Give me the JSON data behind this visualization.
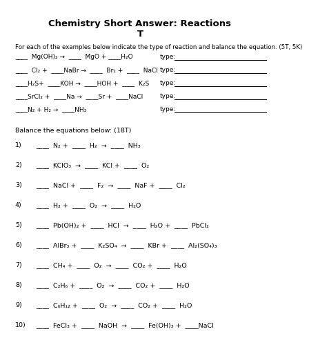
{
  "title_line1": "Chemistry Short Answer: Reactions",
  "title_line2": "T",
  "bg_color": "#ffffff",
  "text_color": "#000000",
  "intro": "For each of the examples below indicate the type of reaction and balance the equation. (5T, 5K)",
  "type_reactions": [
    "____  Mg(OH)₂ →  ____  MgO + ____H₂O",
    "____  Cl₂ +  ____NaBr →  ____  Br₂ +  ____  NaCl",
    "____H₂S+  ____KOH →  ____HOH +  ____  K₂S",
    "____SrCl₂ +  ____Na →  ____Sr +  ____NaCl",
    "____N₂ + H₂ →  ____NH₃"
  ],
  "balance_header": "Balance the equations below: (18T)",
  "balance_equations": [
    [
      "1)",
      "____  N₂ +  ____  H₂  →  ____  NH₃"
    ],
    [
      "2)",
      "____  KClO₃  →  ____  KCl +  ____  O₂"
    ],
    [
      "3)",
      "____  NaCl +  ____  F₂  →  ____  NaF +  ____  Cl₂"
    ],
    [
      "4)",
      "____  H₂ +  ____  O₂  →  ____  H₂O"
    ],
    [
      "5)",
      "____  Pb(OH)₂ +  ____  HCl  →  ____  H₂O +  ____  PbCl₂"
    ],
    [
      "6)",
      "____  AlBr₃ +  ____  K₂SO₄  →  ____  KBr +  ____  Al₂(SO₄)₃"
    ],
    [
      "7)",
      "____  CH₄ +  ____  O₂  →  ____  CO₂ +  ____  H₂O"
    ],
    [
      "8)",
      "____  C₂H₆ +  ____  O₂  →  ____  CO₂ +  ____  H₂O"
    ],
    [
      "9)",
      "____  C₆H₁₂ +  ____  O₂  →  ____  CO₂ +  ____  H₂O"
    ],
    [
      "10)",
      "____  FeCl₃ +  ____  NaOH  →  ____  Fe(OH)₃ +  ____NaCl"
    ]
  ]
}
